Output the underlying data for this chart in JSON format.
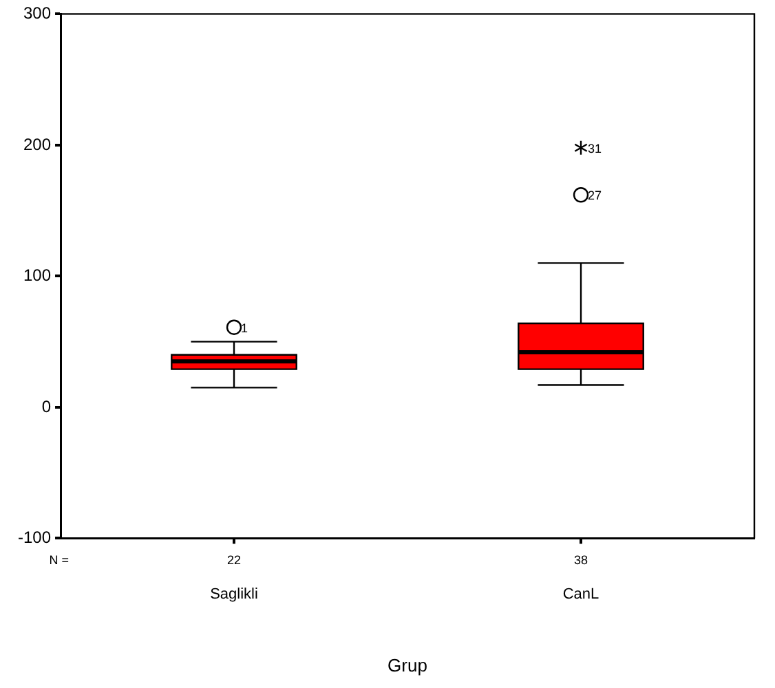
{
  "chart_data": {
    "type": "box",
    "xlabel": "Grup",
    "categories": [
      "Saglikli",
      "CanL"
    ],
    "color": "#ff0000",
    "boxes": [
      {
        "low": 15,
        "q1": 29,
        "median": 35,
        "q3": 40,
        "high": 50,
        "outliers": [
          61
        ]
      },
      {
        "low": 17,
        "q1": 29,
        "median": 42,
        "q3": 64,
        "high": 110,
        "outliers": [
          162,
          198
        ]
      }
    ],
    "ylim": [
      -100,
      300
    ],
    "yticks": [
      -100,
      0,
      100,
      200,
      300
    ],
    "grid": false,
    "legend": false,
    "annotations": [
      "N =",
      {
        "text": "22",
        "x": "Saglikli"
      },
      {
        "text": "38",
        "x": "CanL"
      },
      "1",
      "27",
      "31"
    ]
  }
}
